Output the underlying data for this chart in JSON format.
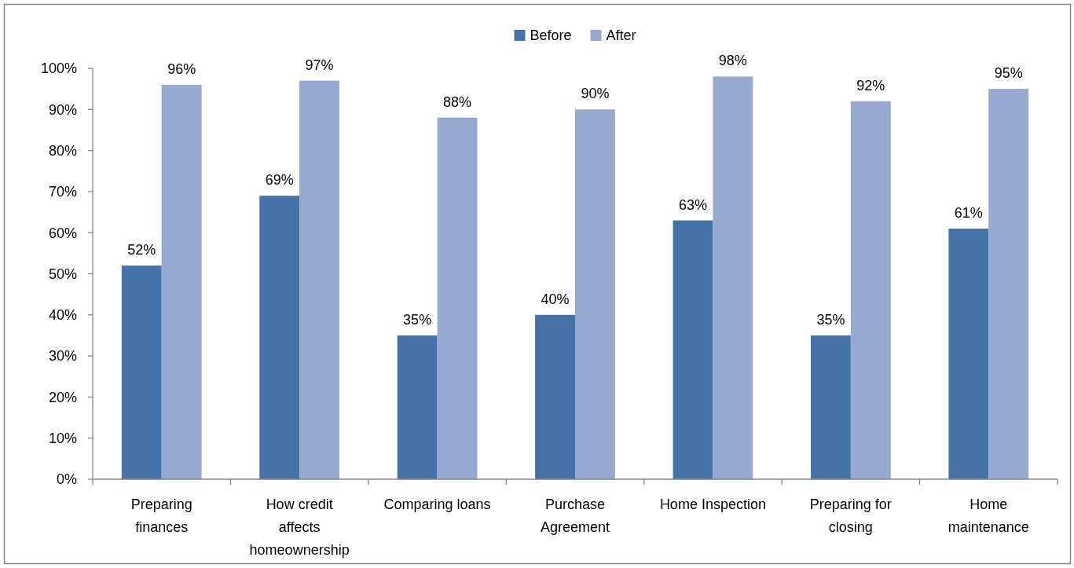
{
  "chart_data": {
    "type": "bar",
    "categories": [
      "Preparing finances",
      "How credit affects homeownership",
      "Comparing loans",
      "Purchase Agreement",
      "Home Inspection",
      "Preparing for closing",
      "Home maintenance"
    ],
    "series": [
      {
        "name": "Before",
        "color": "#4572a7",
        "values": [
          52,
          69,
          35,
          40,
          63,
          35,
          61
        ],
        "value_labels": [
          "52%",
          "69%",
          "35%",
          "40%",
          "63%",
          "35%",
          "61%"
        ]
      },
      {
        "name": "After",
        "color": "#95a9d1",
        "values": [
          96,
          97,
          88,
          90,
          98,
          92,
          95
        ],
        "value_labels": [
          "96%",
          "97%",
          "88%",
          "90%",
          "98%",
          "92%",
          "95%"
        ]
      }
    ],
    "ylim": [
      0,
      100
    ],
    "yticks": [
      {
        "value": 0,
        "label": "0%"
      },
      {
        "value": 10,
        "label": "10%"
      },
      {
        "value": 20,
        "label": "20%"
      },
      {
        "value": 30,
        "label": "30%"
      },
      {
        "value": 40,
        "label": "40%"
      },
      {
        "value": 50,
        "label": "50%"
      },
      {
        "value": 60,
        "label": "60%"
      },
      {
        "value": 70,
        "label": "70%"
      },
      {
        "value": 80,
        "label": "80%"
      },
      {
        "value": 90,
        "label": "90%"
      },
      {
        "value": 100,
        "label": "100%"
      }
    ],
    "legend": "top"
  }
}
